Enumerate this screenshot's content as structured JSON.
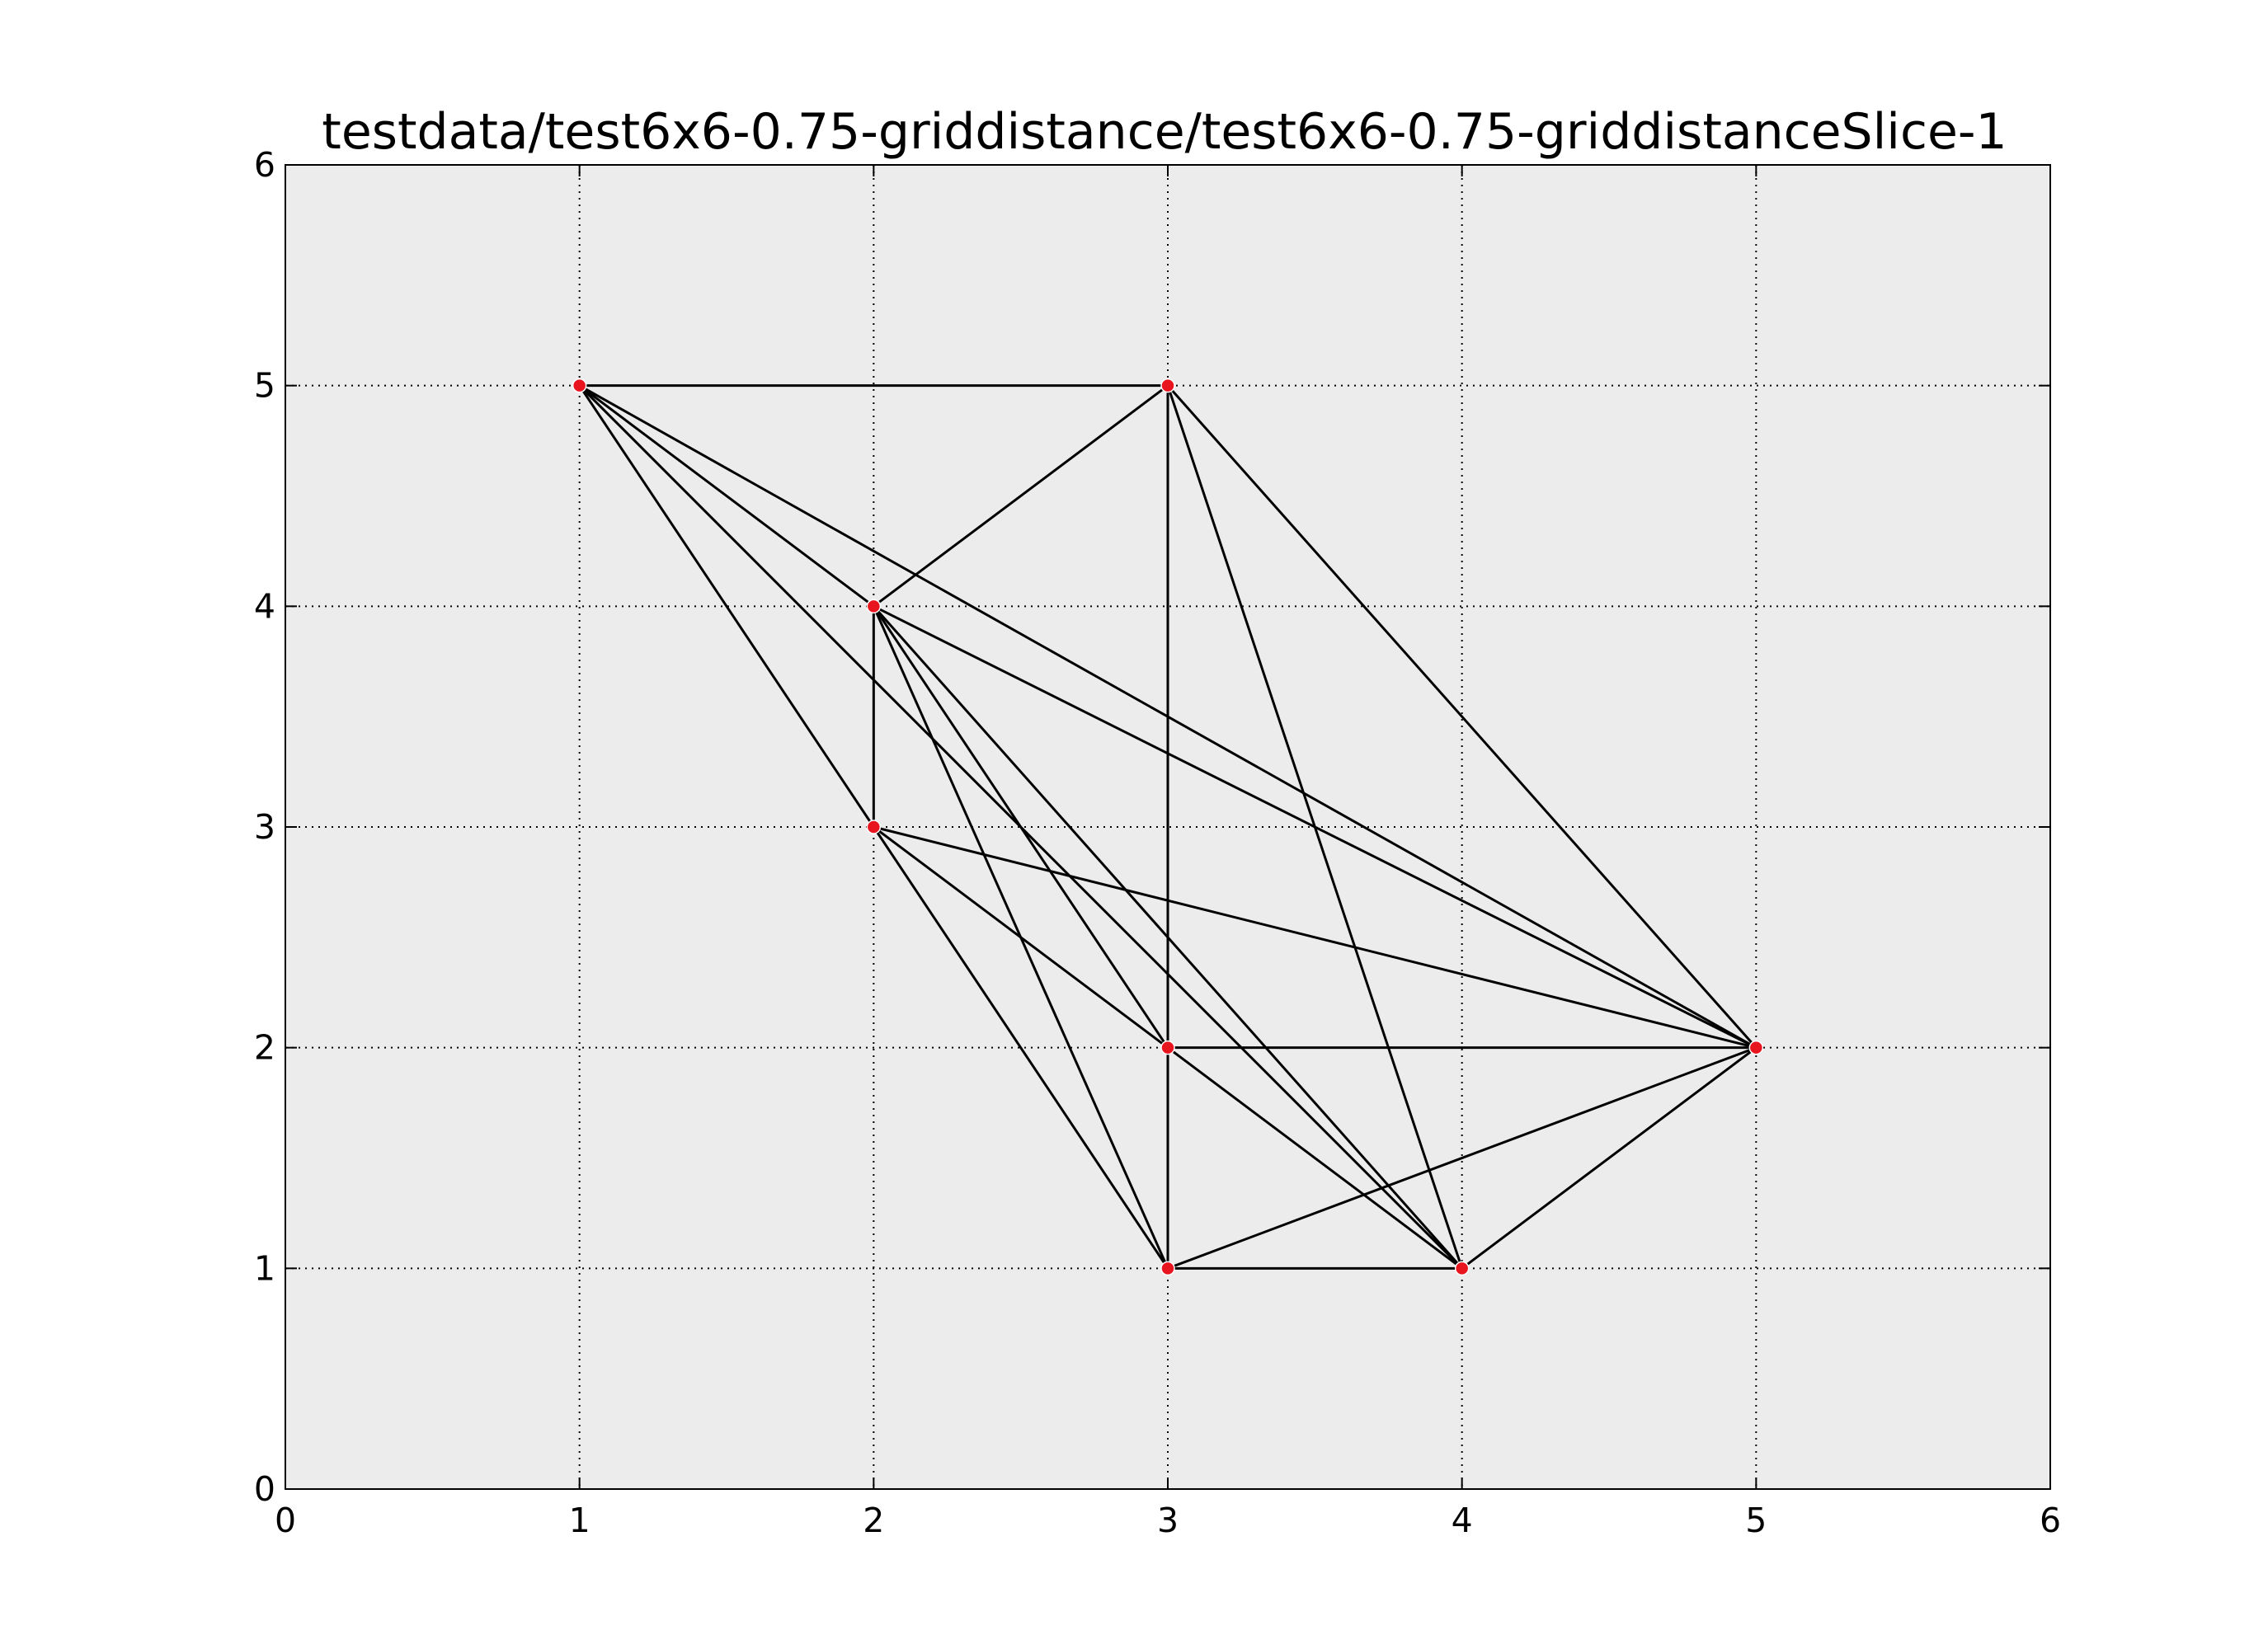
{
  "chart_data": {
    "type": "scatter",
    "title": "testdata/test6x6-0.75-griddistance/test6x6-0.75-griddistanceSlice-1",
    "xlabel": "",
    "ylabel": "",
    "xlim": [
      0,
      6
    ],
    "ylim": [
      0,
      6
    ],
    "xticks": [
      "0",
      "1",
      "2",
      "3",
      "4",
      "5",
      "6"
    ],
    "yticks": [
      "0",
      "1",
      "2",
      "3",
      "4",
      "5",
      "6"
    ],
    "grid": true,
    "plot_background": "#ececec",
    "edge_color": "#000000",
    "point_color": "#e8141e",
    "points": [
      {
        "x": 1,
        "y": 5
      },
      {
        "x": 3,
        "y": 5
      },
      {
        "x": 2,
        "y": 4
      },
      {
        "x": 2,
        "y": 3
      },
      {
        "x": 3,
        "y": 2
      },
      {
        "x": 5,
        "y": 2
      },
      {
        "x": 3,
        "y": 1
      },
      {
        "x": 4,
        "y": 1
      }
    ],
    "edges": [
      [
        [
          1,
          5
        ],
        [
          3,
          5
        ]
      ],
      [
        [
          1,
          5
        ],
        [
          2,
          4
        ]
      ],
      [
        [
          1,
          5
        ],
        [
          2,
          3
        ]
      ],
      [
        [
          1,
          5
        ],
        [
          5,
          2
        ]
      ],
      [
        [
          1,
          5
        ],
        [
          4,
          1
        ]
      ],
      [
        [
          3,
          5
        ],
        [
          2,
          4
        ]
      ],
      [
        [
          3,
          5
        ],
        [
          3,
          1
        ]
      ],
      [
        [
          3,
          5
        ],
        [
          4,
          1
        ]
      ],
      [
        [
          3,
          5
        ],
        [
          5,
          2
        ]
      ],
      [
        [
          2,
          4
        ],
        [
          2,
          3
        ]
      ],
      [
        [
          2,
          4
        ],
        [
          5,
          2
        ]
      ],
      [
        [
          2,
          4
        ],
        [
          3,
          2
        ]
      ],
      [
        [
          2,
          4
        ],
        [
          3,
          1
        ]
      ],
      [
        [
          2,
          4
        ],
        [
          4,
          1
        ]
      ],
      [
        [
          2,
          3
        ],
        [
          5,
          2
        ]
      ],
      [
        [
          2,
          3
        ],
        [
          3,
          2
        ]
      ],
      [
        [
          2,
          3
        ],
        [
          3,
          1
        ]
      ],
      [
        [
          3,
          2
        ],
        [
          5,
          2
        ]
      ],
      [
        [
          3,
          2
        ],
        [
          4,
          1
        ]
      ],
      [
        [
          3,
          1
        ],
        [
          4,
          1
        ]
      ],
      [
        [
          3,
          1
        ],
        [
          5,
          2
        ]
      ],
      [
        [
          4,
          1
        ],
        [
          5,
          2
        ]
      ]
    ]
  }
}
